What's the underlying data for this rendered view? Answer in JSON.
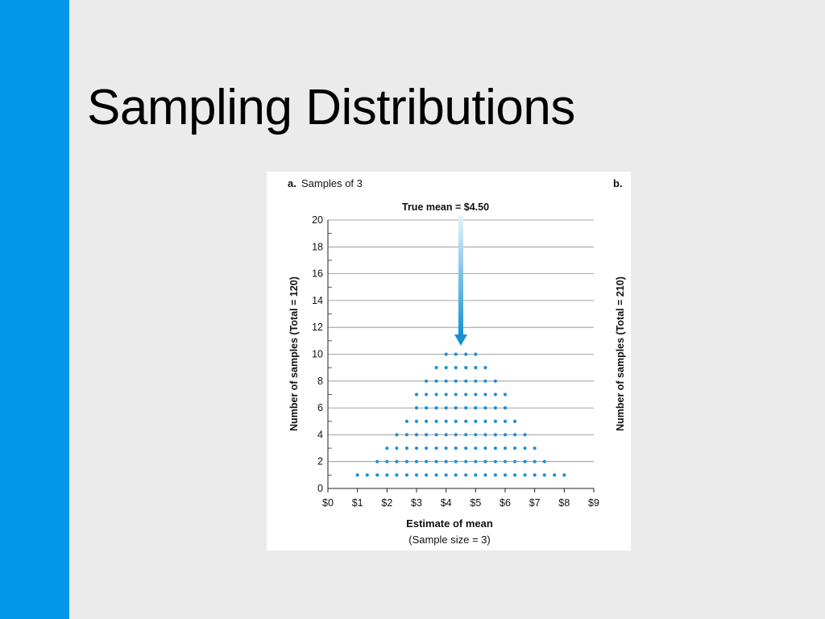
{
  "slide": {
    "title": "Sampling Distributions",
    "accent_color": "#0496e6",
    "background_color": "#ebebeb"
  },
  "figure": {
    "panel_a_prefix": "a.",
    "panel_a_title": "Samples of 3",
    "panel_b_prefix": "b.",
    "panel_b_ylabel": "Number of samples (Total = 210)",
    "true_mean_label": "True mean  =  $4.50",
    "arrow_color": "#1592d4"
  },
  "chart_data": {
    "type": "scatter",
    "style": "dot plot (stacked dots)",
    "title": "Samples of 3",
    "xlabel": "Estimate of mean",
    "xlabel_sub": "(Sample size = 3)",
    "ylabel": "Number of samples (Total = 120)",
    "xlim": [
      0,
      9
    ],
    "ylim": [
      0,
      20
    ],
    "x_ticks": [
      "$0",
      "$1",
      "$2",
      "$3",
      "$4",
      "$5",
      "$6",
      "$7",
      "$8",
      "$9"
    ],
    "y_ticks": [
      0,
      2,
      4,
      6,
      8,
      10,
      12,
      14,
      16,
      18,
      20
    ],
    "grid": "horizontal",
    "true_mean": 4.5,
    "dot_color": "#1b8fd6",
    "x": [
      1.0,
      1.33,
      1.67,
      2.0,
      2.33,
      2.67,
      3.0,
      3.33,
      3.67,
      4.0,
      4.33,
      4.67,
      5.0,
      5.33,
      5.67,
      6.0,
      6.33,
      6.67,
      7.0,
      7.33,
      7.67,
      8.0
    ],
    "counts": [
      1,
      1,
      2,
      3,
      4,
      5,
      7,
      8,
      9,
      10,
      10,
      10,
      10,
      9,
      8,
      7,
      5,
      4,
      3,
      2,
      1,
      1
    ]
  }
}
